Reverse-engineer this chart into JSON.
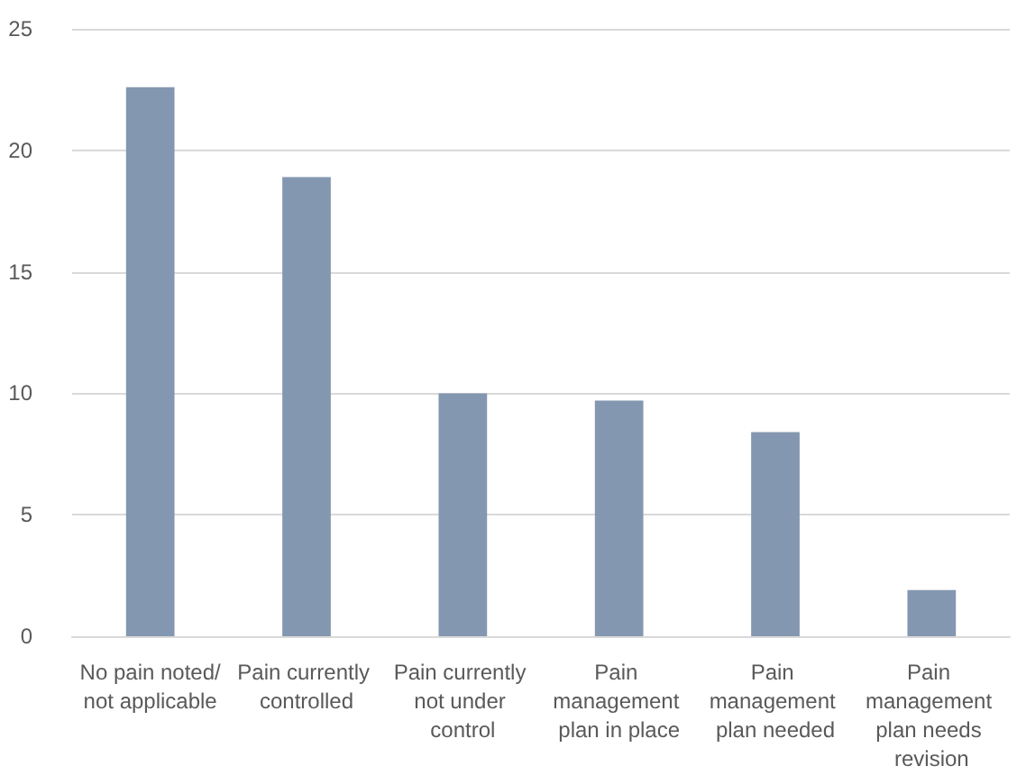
{
  "chart_data": {
    "type": "bar",
    "categories": [
      "No pain noted/not applicable",
      "Pain currently controlled",
      "Pain currently not under control",
      "Pain management plan in place",
      "Pain management plan needed",
      "Pain management plan needs revision"
    ],
    "values": [
      22.6,
      18.9,
      10.0,
      9.7,
      8.4,
      1.9
    ],
    "color": "#8497b0",
    "ylim": [
      0,
      25
    ],
    "yticks": [
      0,
      5,
      10,
      15,
      20,
      25
    ],
    "grid": "y"
  }
}
